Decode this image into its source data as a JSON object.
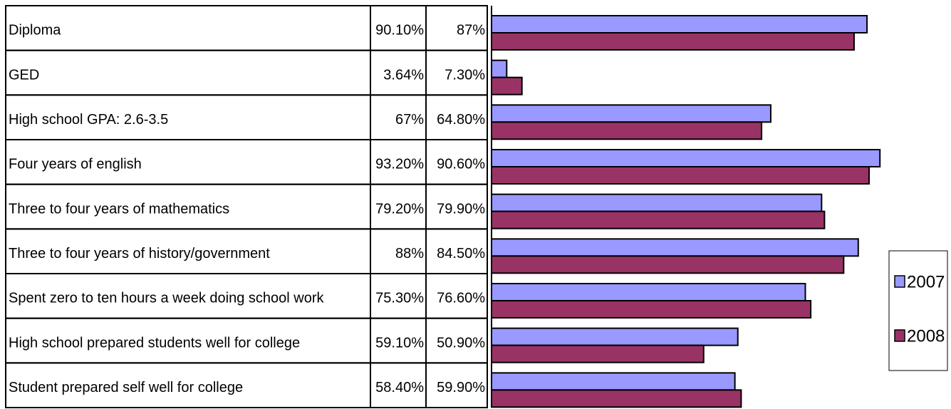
{
  "chart_data": {
    "type": "bar",
    "orientation": "horizontal",
    "categories": [
      "Diploma",
      "GED",
      "High school GPA: 2.6-3.5",
      "Four years of english",
      "Three to four years of mathematics",
      "Three to four years of history/government",
      "Spent zero to ten hours a week doing school work",
      "High school prepared students well for college",
      "Student prepared self well for college"
    ],
    "series": [
      {
        "name": "2007",
        "color": "#9999ff",
        "values": [
          90.1,
          3.64,
          67,
          93.2,
          79.2,
          88,
          75.3,
          59.1,
          58.4
        ],
        "value_labels": [
          "90.10%",
          "3.64%",
          "67%",
          "93.20%",
          "79.20%",
          "88%",
          "75.30%",
          "59.10%",
          "58.40%"
        ]
      },
      {
        "name": "2008",
        "color": "#993366",
        "values": [
          87,
          7.3,
          64.8,
          90.6,
          79.9,
          84.5,
          76.6,
          50.9,
          59.9
        ],
        "value_labels": [
          "87%",
          "7.30%",
          "64.80%",
          "90.60%",
          "79.90%",
          "84.50%",
          "76.60%",
          "50.90%",
          "59.90%"
        ]
      }
    ],
    "xlim": [
      0,
      100
    ],
    "legend": "right"
  }
}
